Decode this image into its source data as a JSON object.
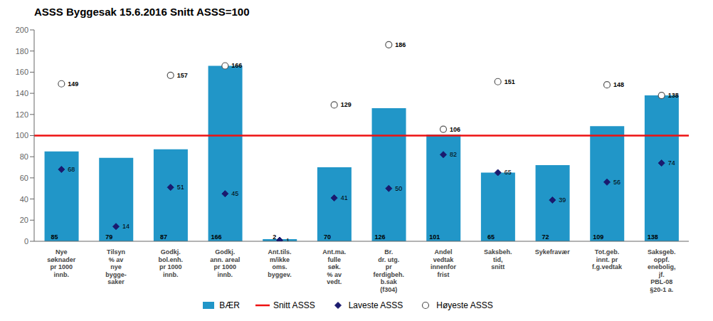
{
  "chart_data": {
    "type": "bar",
    "title": "ASSS Byggesak 15.6.2016  Snitt ASSS=100",
    "categories": [
      "Nye\nsøknader\npr 1000\ninnb.",
      "Tilsyn\n% av\nnye\nbygge-\nsaker",
      "Godkj.\nbol.enh.\npr 1000\ninnb.",
      "Godkj.\nann. areal\npr 1000\ninnb.",
      "Ant.tils.\nm/ikke\noms.\nbyggev.",
      "Ant.ma.\nfulle\nsøk.\n% av\nvedt.",
      "Br.\ndr. utg.\npr\nferdigbeh.\nb.sak\n(f304)",
      "Andel\nvedtak\ninnenfor\nfrist",
      "Saksbeh.\ntid,\nsnitt",
      "Sykefravær",
      "Tot.geb.\ninnt. pr\nf.g.vedtak",
      "Saksgeb.\noppf.\nenebolig,\njf.\nPBL-08\n§20-1 a."
    ],
    "series": [
      {
        "name": "BÆR",
        "type": "bar",
        "color": "#2196c8",
        "values": [
          85,
          79,
          87,
          166,
          2,
          70,
          126,
          101,
          65,
          72,
          109,
          138
        ],
        "data_labels": true
      },
      {
        "name": "Snitt ASSS",
        "type": "reference_line",
        "color": "#ee1111",
        "value": 100
      },
      {
        "name": "Laveste ASSS",
        "type": "scatter",
        "marker": "diamond",
        "color": "#1a1a6e",
        "values": [
          68,
          14,
          51,
          45,
          1,
          41,
          50,
          82,
          65,
          39,
          56,
          74
        ],
        "data_labels": true
      },
      {
        "name": "Høyeste ASSS",
        "type": "scatter",
        "marker": "circle",
        "color": "#555555",
        "values": [
          149,
          null,
          157,
          166,
          null,
          129,
          186,
          106,
          151,
          null,
          148,
          138
        ],
        "data_labels": true
      }
    ],
    "ylim": [
      0,
      200
    ],
    "yticks": [
      0,
      20,
      40,
      60,
      80,
      100,
      120,
      140,
      160,
      180,
      200
    ],
    "grid": false,
    "legend": "bottom"
  }
}
